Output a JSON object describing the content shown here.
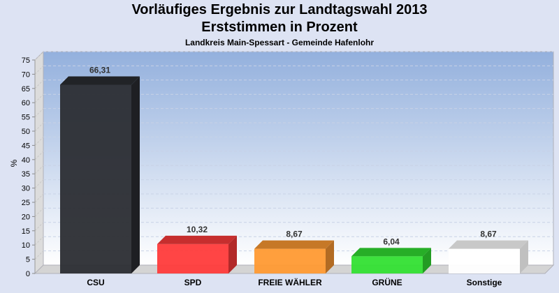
{
  "chart_data": {
    "type": "bar",
    "title": "Vorläufiges Ergebnis zur Landtagswahl 2013",
    "subtitle": "Erststimmen in Prozent",
    "subtitle2": "Landkreis Main-Spessart - Gemeinde Hafenlohr",
    "ylabel": "%",
    "xlabel": "",
    "ylim": [
      0,
      75
    ],
    "yticks": [
      0,
      5,
      10,
      15,
      20,
      25,
      30,
      35,
      40,
      45,
      50,
      55,
      60,
      65,
      70,
      75
    ],
    "categories": [
      "CSU",
      "SPD",
      "FREIE WÄHLER",
      "GRÜNE",
      "Sonstige"
    ],
    "values": [
      66.31,
      10.32,
      8.67,
      6.04,
      8.67
    ],
    "labels": [
      "66,31",
      "10,32",
      "8,67",
      "6,04",
      "8,67"
    ],
    "colors": [
      "#2b2d33",
      "#ff3b3b",
      "#ff9a33",
      "#33e033",
      "#ffffff"
    ],
    "grid": true
  }
}
